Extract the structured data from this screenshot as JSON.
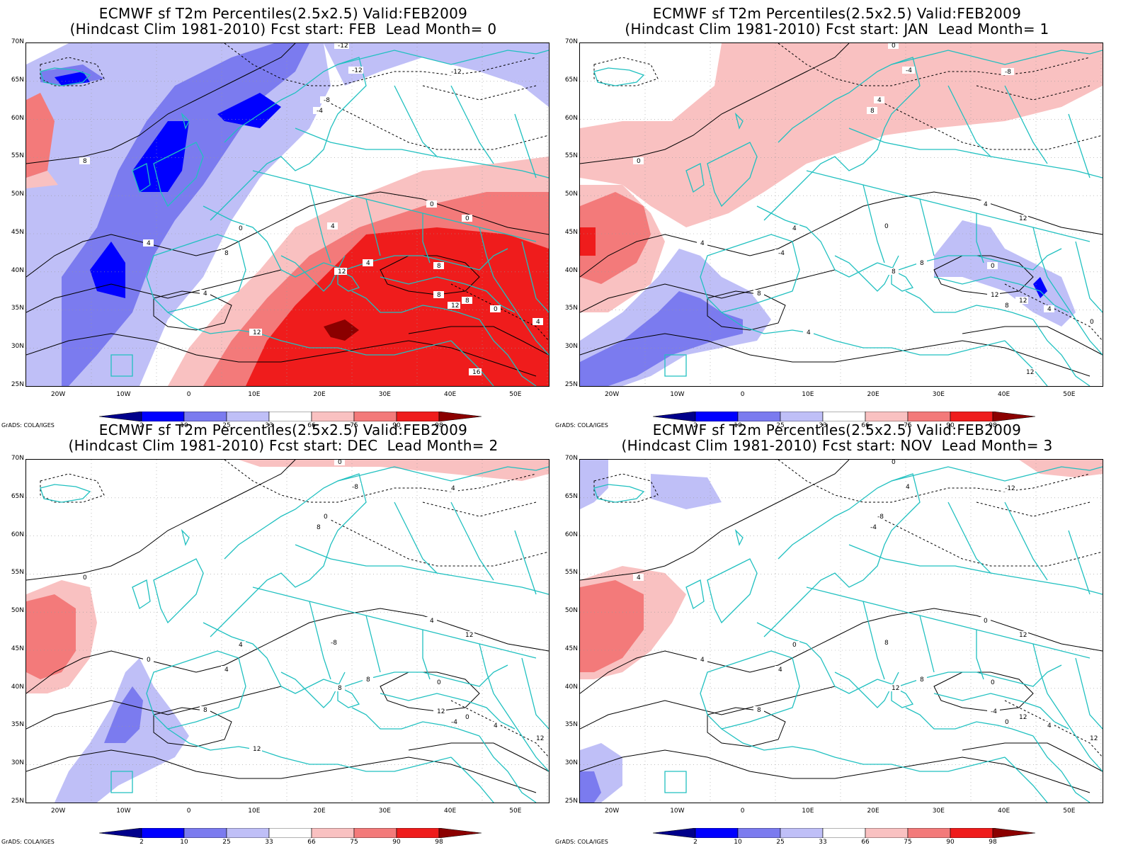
{
  "credit": "GrADS: COLA/IGES",
  "lat_labels": [
    "70N",
    "65N",
    "60N",
    "55N",
    "50N",
    "45N",
    "40N",
    "35N",
    "30N",
    "25N"
  ],
  "lon_labels": [
    "20W",
    "10W",
    "0",
    "10E",
    "20E",
    "30E",
    "40E",
    "50E"
  ],
  "colorbar": {
    "labels": [
      "2",
      "10",
      "25",
      "33",
      "66",
      "75",
      "90",
      "98"
    ],
    "colors": [
      "#00008b",
      "#0000ff",
      "#7b7bef",
      "#bfbff7",
      "#ffffff",
      "#f9c1c1",
      "#f37a7a",
      "#ef1c1c",
      "#8b0000"
    ]
  },
  "coast_color": "#20c0c0",
  "panels": [
    {
      "title1": "ECMWF sf T2m Percentiles(2.5x2.5) Valid:FEB2009",
      "title2": "(Hindcast Clim 1981-2010) Fcst start: FEB  Lead Month= 0",
      "contour_labels": [
        "-12",
        "-12",
        "-12",
        "-8",
        "-4",
        "0",
        "4",
        "8",
        "4",
        "0",
        "8",
        "4",
        "0",
        "4",
        "8",
        "12",
        "8",
        "12",
        "8",
        "0",
        "4",
        "12",
        "16"
      ]
    },
    {
      "title1": "ECMWF sf T2m Percentiles(2.5x2.5) Valid:FEB2009",
      "title2": "(Hindcast Clim 1981-2010) Fcst start: JAN  Lead Month= 1",
      "contour_labels": [
        "0",
        "-8",
        "-4",
        "4",
        "8",
        "4",
        "0",
        "0",
        "4",
        "4",
        "-4",
        "8",
        "12",
        "8",
        "0",
        "8",
        "12",
        "8",
        "12",
        "4",
        "0",
        "4",
        "12"
      ]
    },
    {
      "title1": "ECMWF sf T2m Percentiles(2.5x2.5) Valid:FEB2009",
      "title2": "(Hindcast Clim 1981-2010) Fcst start: DEC  Lead Month= 2",
      "contour_labels": [
        "0",
        "4",
        "-8",
        "0",
        "8",
        "4",
        "-8",
        "0",
        "0",
        "4",
        "4",
        "8",
        "12",
        "8",
        "0",
        "8",
        "12",
        "-4",
        "0",
        "4",
        "12",
        "12"
      ]
    },
    {
      "title1": "ECMWF sf T2m Percentiles(2.5x2.5) Valid:FEB2009",
      "title2": "(Hindcast Clim 1981-2010) Fcst start: NOV  Lead Month= 3",
      "contour_labels": [
        "0",
        "-12",
        "4",
        "-8",
        "-4",
        "0",
        "8",
        "4",
        "4",
        "0",
        "4",
        "8",
        "12",
        "8",
        "0",
        "12",
        "-4",
        "0",
        "12",
        "4",
        "12"
      ]
    }
  ]
}
